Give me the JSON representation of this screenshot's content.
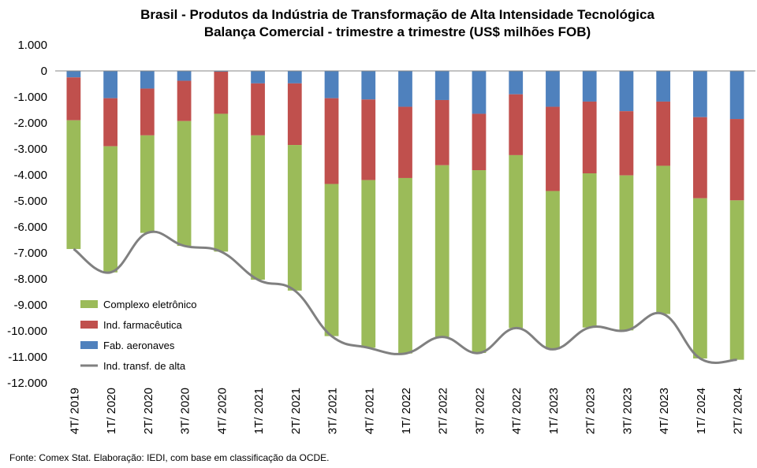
{
  "title_lines": [
    "Brasil - Produtos da Indústria de Transformação  de Alta Intensidade Tecnológica",
    "Balança Comercial - trimestre a trimestre (US$ milhões FOB)"
  ],
  "source": "Fonte:  Comex Stat. Elaboração: IEDI, com base em classificação da OCDE.",
  "chart_data": {
    "type": "bar",
    "stacked": true,
    "title": "Brasil - Produtos da Indústria de Transformação  de Alta Intensidade Tecnológica / Balança Comercial - trimestre a trimestre (US$ milhões FOB)",
    "categories": [
      "4T/ 2019",
      "1T/ 2020",
      "2T/ 2020",
      "3T/ 2020",
      "4T/ 2020",
      "1T/ 2021",
      "2T/ 2021",
      "3T/ 2021",
      "4T/ 2021",
      "1T/ 2022",
      "2T/ 2022",
      "3T/ 2022",
      "4T/ 2022",
      "1T/ 2023",
      "2T/ 2023",
      "3T/ 2023",
      "4T/ 2023",
      "1T/ 2024",
      "2T/ 2024"
    ],
    "y_ticks": [
      "1.000",
      "0",
      "-1.000",
      "-2.000",
      "-3.000",
      "-4.000",
      "-5.000",
      "-6.000",
      "-7.000",
      "-8.000",
      "-9.000",
      "-10.000",
      "-11.000",
      "-12.000"
    ],
    "ylim": [
      -12000,
      1000
    ],
    "grid": false,
    "legend_position": "bottom-left",
    "series": [
      {
        "name": "Fab. aeronaves",
        "type": "bar",
        "color": "#4F81BD",
        "values": [
          -250,
          -1050,
          -680,
          -380,
          -30,
          -480,
          -480,
          -1050,
          -1100,
          -1380,
          -1120,
          -1650,
          -900,
          -1380,
          -1180,
          -1550,
          -1180,
          -1780,
          -1850
        ]
      },
      {
        "name": "Ind. farmacêutica",
        "type": "bar",
        "color": "#C0504D",
        "values": [
          -1650,
          -1850,
          -1800,
          -1550,
          -1620,
          -2000,
          -2370,
          -3300,
          -3100,
          -2740,
          -2510,
          -2170,
          -2340,
          -3240,
          -2760,
          -2470,
          -2470,
          -3120,
          -3130
        ]
      },
      {
        "name": "Complexo eletrônico",
        "type": "bar",
        "color": "#9BBB59",
        "values": [
          -4950,
          -4850,
          -3750,
          -4800,
          -5300,
          -5550,
          -5600,
          -5850,
          -6450,
          -6750,
          -6600,
          -7030,
          -6650,
          -6090,
          -5930,
          -5960,
          -5700,
          -6160,
          -6130
        ]
      },
      {
        "name": "Ind. transf. de alta",
        "type": "line",
        "color": "#808080",
        "values": [
          -6850,
          -7750,
          -6230,
          -6730,
          -6950,
          -8030,
          -8450,
          -10200,
          -10650,
          -10870,
          -10230,
          -10850,
          -9890,
          -10710,
          -9870,
          -9980,
          -9350,
          -11060,
          -11110
        ]
      }
    ]
  }
}
